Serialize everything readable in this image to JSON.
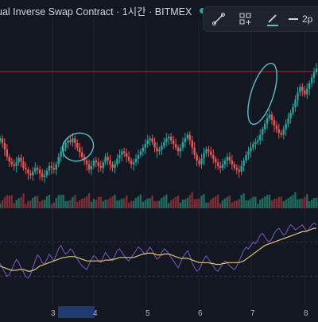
{
  "header": {
    "title": "ual Inverse Swap Contract · 1시간 · BITMEX",
    "extra_text": "시"
  },
  "toolbar": {
    "line_width_label": "2p",
    "icons": [
      "line-tool-icon",
      "settings-group-icon",
      "pencil-icon",
      "line-width-icon"
    ]
  },
  "xaxis_labels": [
    "3",
    "4",
    "5",
    "6",
    "7",
    "8"
  ],
  "colors": {
    "background": "#131722",
    "up": "#26a69a",
    "down": "#ef5350",
    "volume_up": "#1e6b60",
    "volume_down": "#7a2e34",
    "rsi_line": "#7e57c2",
    "ma_line": "#d9c56a",
    "annotation": "#4fc3c8",
    "reference_line": "#b22a2a"
  },
  "chart_data": {
    "type": "candlestick",
    "note_axes": "price axis labels not visible",
    "closes": [
      210,
      205,
      198,
      190,
      185,
      182,
      180,
      184,
      189,
      185,
      178,
      176,
      172,
      170,
      174,
      178,
      176,
      172,
      168,
      170,
      175,
      180,
      178,
      176,
      182,
      190,
      196,
      200,
      205,
      208,
      206,
      210,
      205,
      200,
      195,
      190,
      186,
      182,
      176,
      180,
      186,
      184,
      180,
      178,
      184,
      190,
      186,
      182,
      178,
      182,
      188,
      192,
      196,
      194,
      190,
      186,
      182,
      184,
      188,
      192,
      196,
      200,
      204,
      208,
      210,
      206,
      200,
      196,
      198,
      202,
      206,
      210,
      212,
      208,
      204,
      200,
      196,
      200,
      206,
      210,
      214,
      208,
      200,
      192,
      186,
      182,
      188,
      194,
      198,
      196,
      192,
      188,
      184,
      180,
      178,
      182,
      186,
      190,
      186,
      182,
      178,
      176,
      174,
      180,
      186,
      192,
      196,
      200,
      204,
      206,
      208,
      214,
      220,
      226,
      232,
      236,
      230,
      224,
      220,
      216,
      214,
      220,
      226,
      232,
      238,
      244,
      252,
      260,
      266,
      262,
      258,
      264,
      270,
      276,
      282,
      286
    ],
    "rsi": [
      45,
      40,
      35,
      30,
      32,
      38,
      44,
      50,
      46,
      40,
      35,
      30,
      28,
      32,
      40,
      48,
      55,
      52,
      46,
      44,
      50,
      56,
      52,
      48,
      55,
      62,
      66,
      60,
      56,
      58,
      62,
      60,
      54,
      50,
      46,
      42,
      40,
      38,
      44,
      50,
      54,
      52,
      48,
      46,
      52,
      58,
      54,
      50,
      48,
      54,
      60,
      62,
      58,
      54,
      50,
      48,
      52,
      56,
      60,
      64,
      62,
      58,
      56,
      60,
      64,
      60,
      54,
      50,
      52,
      58,
      62,
      60,
      56,
      52,
      48,
      44,
      40,
      46,
      52,
      56,
      60,
      54,
      46,
      40,
      36,
      38,
      44,
      50,
      54,
      50,
      46,
      42,
      38,
      36,
      40,
      44,
      48,
      46,
      42,
      40,
      38,
      42,
      48,
      54,
      60,
      64,
      62,
      66,
      70,
      68,
      72,
      78,
      80,
      76,
      72,
      70,
      74,
      80,
      84,
      86,
      82,
      78,
      80,
      86,
      90,
      88,
      84,
      86,
      88,
      90,
      86,
      82,
      86,
      90,
      92,
      90
    ],
    "ma": [
      42,
      41,
      40,
      39,
      38,
      37,
      37,
      37,
      38,
      38,
      38,
      37,
      36,
      36,
      37,
      38,
      40,
      42,
      43,
      44,
      45,
      46,
      47,
      48,
      49,
      50,
      51,
      52,
      52,
      53,
      53,
      53,
      53,
      52,
      51,
      50,
      49,
      48,
      48,
      48,
      48,
      48,
      48,
      48,
      48,
      49,
      49,
      49,
      50,
      50,
      51,
      52,
      52,
      52,
      52,
      52,
      52,
      52,
      53,
      54,
      55,
      56,
      56,
      57,
      57,
      57,
      56,
      55,
      55,
      55,
      56,
      56,
      56,
      55,
      54,
      53,
      52,
      51,
      51,
      51,
      51,
      50,
      49,
      48,
      47,
      46,
      46,
      46,
      46,
      46,
      45,
      45,
      44,
      44,
      44,
      45,
      45,
      46,
      46,
      46,
      46,
      46,
      46,
      47,
      48,
      50,
      52,
      54,
      56,
      58,
      60,
      62,
      64,
      66,
      67,
      68,
      69,
      70,
      71,
      72,
      73,
      74,
      75,
      76,
      77,
      78,
      79,
      80,
      81,
      82,
      82,
      83,
      84,
      85,
      86,
      86
    ]
  }
}
